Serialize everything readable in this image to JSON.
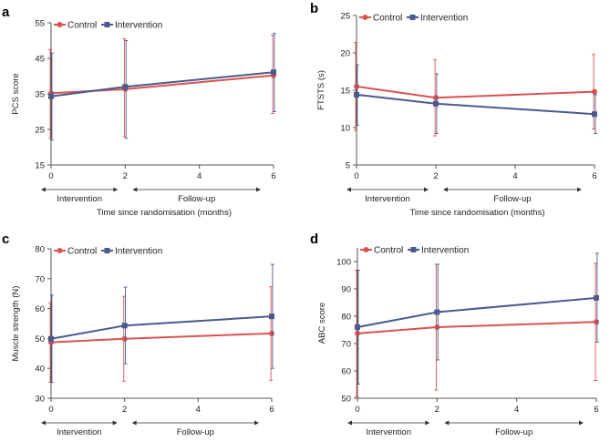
{
  "chart_data": [
    {
      "type": "line",
      "panel": "a",
      "ylabel": "PCS score",
      "xlabel": "Time since randomisation (months)",
      "x_ticks": [
        "0",
        "2",
        "4",
        "6"
      ],
      "y_ticks": [
        "15",
        "25",
        "35",
        "45",
        "55"
      ],
      "xlim": [
        0,
        6
      ],
      "ylim": [
        15,
        55
      ],
      "periods": [
        "Intervention",
        "Follow-up"
      ],
      "series": [
        {
          "name": "Control",
          "color": "#d9534f",
          "x": [
            0,
            2,
            6
          ],
          "values": [
            35.2,
            36.3,
            40.2
          ],
          "err_low": [
            22.5,
            23.0,
            29.5
          ],
          "err_high": [
            47.5,
            50.5,
            51.5
          ]
        },
        {
          "name": "Intervention",
          "color": "#4a5a8c",
          "x": [
            0,
            2,
            6
          ],
          "values": [
            34.3,
            37.0,
            41.1
          ],
          "err_low": [
            22.0,
            22.5,
            30.0
          ],
          "err_high": [
            46.5,
            50.0,
            52.0
          ]
        }
      ]
    },
    {
      "type": "line",
      "panel": "b",
      "ylabel": "FTSTS (s)",
      "xlabel": "Time since randomisation (months)",
      "x_ticks": [
        "0",
        "2",
        "4",
        "6"
      ],
      "y_ticks": [
        "5",
        "10",
        "15",
        "20",
        "25"
      ],
      "xlim": [
        0,
        6
      ],
      "ylim": [
        5,
        25
      ],
      "periods": [
        "Intervention",
        "Follow-up"
      ],
      "series": [
        {
          "name": "Control",
          "color": "#d9534f",
          "x": [
            0,
            2,
            6
          ],
          "values": [
            15.5,
            14.0,
            14.8
          ],
          "err_low": [
            9.6,
            8.9,
            9.8
          ],
          "err_high": [
            21.4,
            19.1,
            19.8
          ]
        },
        {
          "name": "Intervention",
          "color": "#4a5a8c",
          "x": [
            0,
            2,
            6
          ],
          "values": [
            14.4,
            13.2,
            11.8
          ],
          "err_low": [
            10.3,
            9.2,
            9.2
          ],
          "err_high": [
            18.4,
            17.2,
            14.4
          ]
        }
      ]
    },
    {
      "type": "line",
      "panel": "c",
      "ylabel": "Muscle strength (N)",
      "xlabel": "Time since randomisation (months)",
      "x_ticks": [
        "0",
        "2",
        "4",
        "6"
      ],
      "y_ticks": [
        "30",
        "40",
        "50",
        "60",
        "70",
        "80"
      ],
      "xlim": [
        0,
        6
      ],
      "ylim": [
        30,
        80
      ],
      "periods": [
        "Intervention",
        "Follow-up"
      ],
      "series": [
        {
          "name": "Control",
          "color": "#d9534f",
          "x": [
            0,
            2,
            6
          ],
          "values": [
            48.7,
            49.9,
            51.7
          ],
          "err_low": [
            35.4,
            35.7,
            36.0
          ],
          "err_high": [
            62.0,
            64.1,
            67.3
          ]
        },
        {
          "name": "Intervention",
          "color": "#4a5a8c",
          "x": [
            0,
            2,
            6
          ],
          "values": [
            49.9,
            54.3,
            57.4
          ],
          "err_low": [
            35.3,
            41.5,
            40.0
          ],
          "err_high": [
            64.5,
            67.2,
            74.8
          ]
        }
      ]
    },
    {
      "type": "line",
      "panel": "d",
      "ylabel": "ABC score",
      "xlabel": "Time since randomisation (months)",
      "x_ticks": [
        "0",
        "2",
        "4",
        "6"
      ],
      "y_ticks": [
        "50",
        "60",
        "70",
        "80",
        "90",
        "100"
      ],
      "xlim": [
        0,
        6
      ],
      "ylim": [
        50,
        105
      ],
      "periods": [
        "Intervention",
        "Follow-up"
      ],
      "series": [
        {
          "name": "Control",
          "color": "#d9534f",
          "x": [
            0,
            2,
            6
          ],
          "values": [
            73.7,
            76.0,
            77.9
          ],
          "err_low": [
            50.5,
            53.0,
            56.5
          ],
          "err_high": [
            96.9,
            99.0,
            99.3
          ]
        },
        {
          "name": "Intervention",
          "color": "#4a5a8c",
          "x": [
            0,
            2,
            6
          ],
          "values": [
            76.0,
            81.5,
            86.7
          ],
          "err_low": [
            55.2,
            64.0,
            70.5
          ],
          "err_high": [
            96.8,
            99.0,
            103.0
          ]
        }
      ]
    }
  ]
}
